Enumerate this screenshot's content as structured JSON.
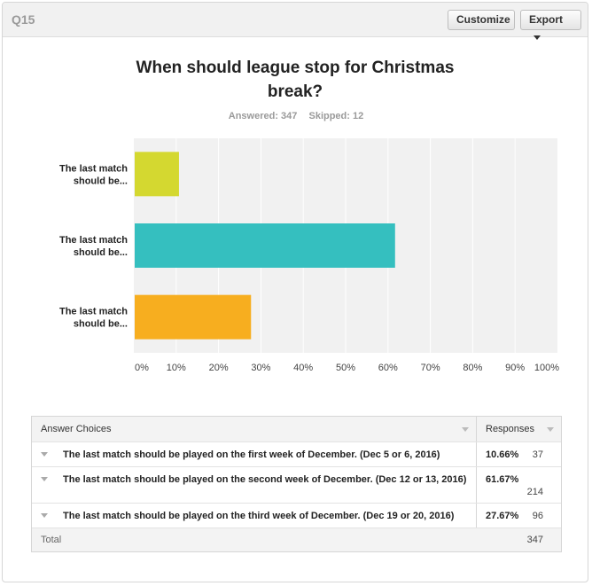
{
  "header": {
    "question_number": "Q15",
    "customize_label": "Customize",
    "export_label": "Export"
  },
  "title": "When should league stop for Christmas break?",
  "answered_label": "Answered: 347",
  "skipped_label": "Skipped: 12",
  "colors": {
    "bar1": "#d4d830",
    "bar2": "#35bfbf",
    "bar3": "#f7ae1f",
    "plot_bg": "#f1f1f1",
    "grid": "#ffffff"
  },
  "chart_data": {
    "type": "bar",
    "orientation": "horizontal",
    "categories": [
      "The last match should be...",
      "The last match should be...",
      "The last match should be..."
    ],
    "values": [
      10.66,
      61.67,
      27.67
    ],
    "xlim": [
      0,
      100
    ],
    "x_ticks": [
      "0%",
      "10%",
      "20%",
      "30%",
      "40%",
      "50%",
      "60%",
      "70%",
      "80%",
      "90%",
      "100%"
    ],
    "grid": true
  },
  "table": {
    "col_choices": "Answer Choices",
    "col_responses": "Responses",
    "rows": [
      {
        "choice": "The last match should be played on the first week of December. (Dec 5 or 6, 2016)",
        "percent": "10.66%",
        "count": "37"
      },
      {
        "choice": "The last match should be played on the second week of December. (Dec 12 or 13, 2016)",
        "percent": "61.67%",
        "count": "214"
      },
      {
        "choice": "The last match should be played on the third week of December. (Dec 19 or 20, 2016)",
        "percent": "27.67%",
        "count": "96"
      }
    ],
    "total_label": "Total",
    "total_count": "347"
  }
}
